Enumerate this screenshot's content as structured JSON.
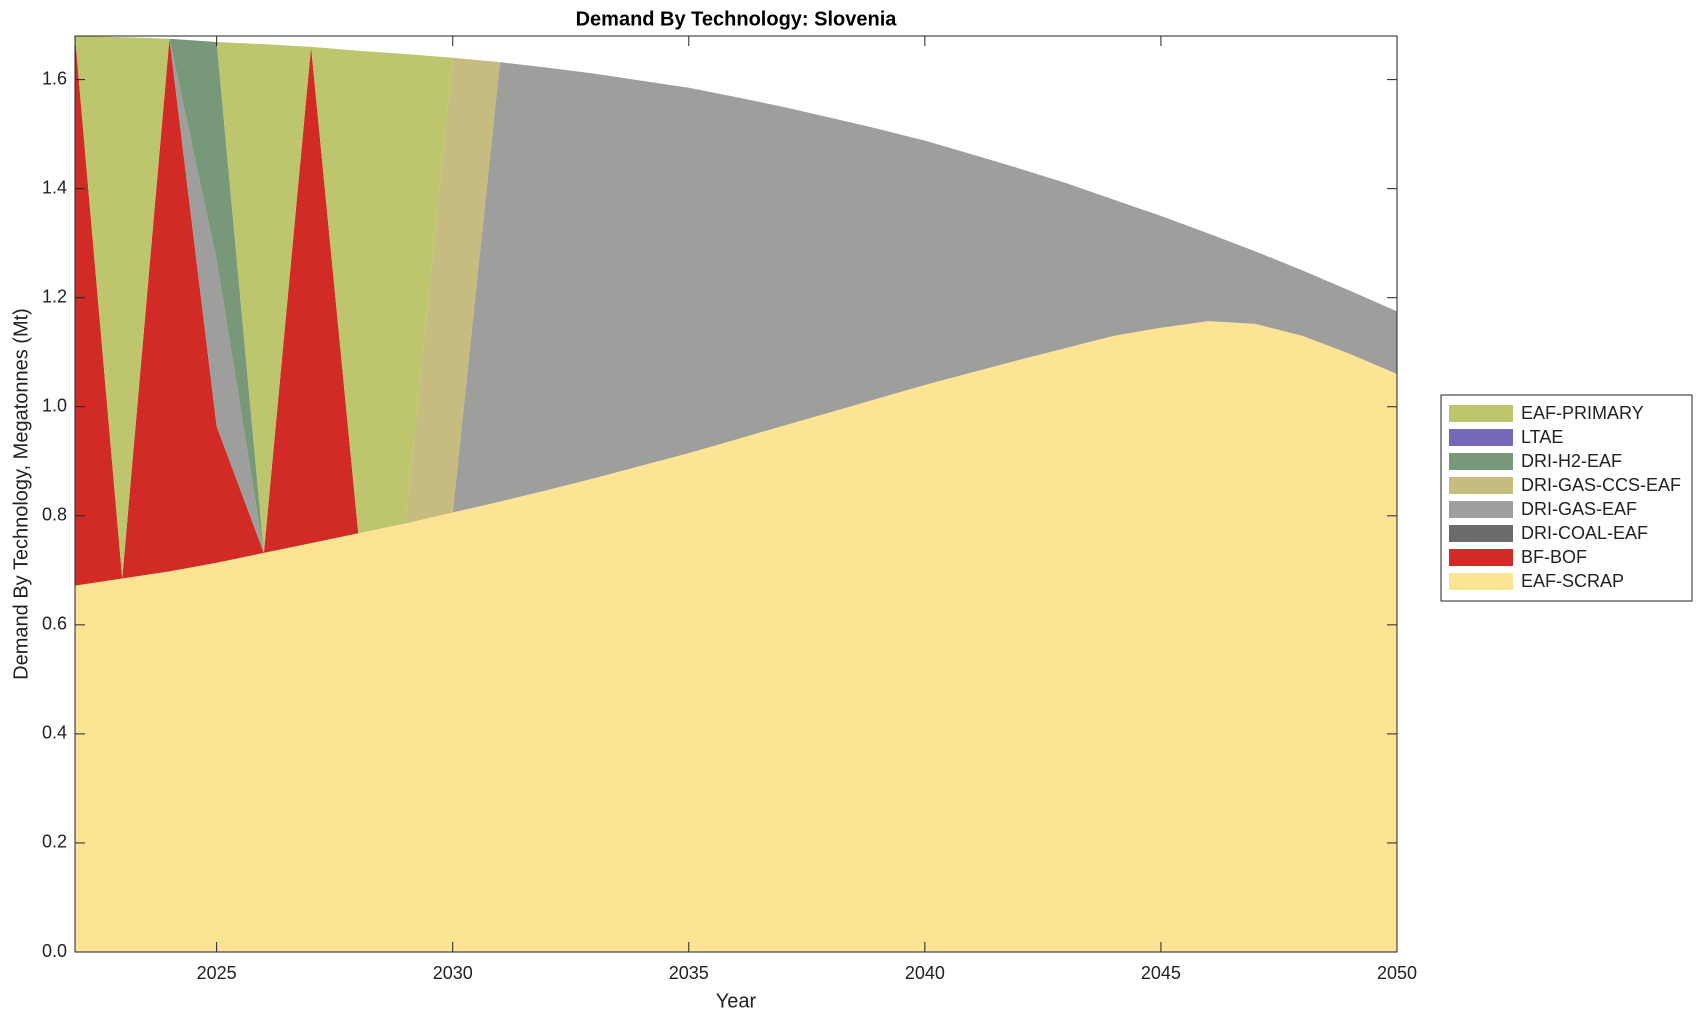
{
  "chart_data": {
    "type": "stacked_area",
    "title": "Demand By Technology: Slovenia",
    "xlabel": "Year",
    "ylabel": "Demand By Technology, Megatonnes (Mt)",
    "x": [
      2022,
      2023,
      2024,
      2025,
      2026,
      2027,
      2028,
      2029,
      2030,
      2031,
      2032,
      2033,
      2034,
      2035,
      2036,
      2037,
      2038,
      2039,
      2040,
      2041,
      2042,
      2043,
      2044,
      2045,
      2046,
      2047,
      2048,
      2049,
      2050
    ],
    "xlim": [
      2022,
      2050
    ],
    "xticks": [
      2025,
      2030,
      2035,
      2040,
      2045,
      2050
    ],
    "ylim": [
      0,
      1.68
    ],
    "yticks": [
      {
        "value": 0,
        "label": "0.0"
      },
      0.2,
      0.4,
      0.6,
      0.8,
      {
        "value": 1,
        "label": "1.0"
      },
      1.2,
      1.4,
      1.6
    ],
    "legend": "right",
    "series": [
      {
        "name": "EAF-SCRAP",
        "color": "#fde495",
        "values": [
          0.672,
          0.685,
          0.698,
          0.714,
          0.732,
          0.75,
          0.768,
          0.786,
          0.806,
          0.826,
          0.847,
          0.869,
          0.892,
          0.915,
          0.94,
          0.965,
          0.99,
          1.015,
          1.04,
          1.063,
          1.086,
          1.108,
          1.13,
          1.145,
          1.157,
          1.152,
          1.13,
          1.097,
          1.06
        ]
      },
      {
        "name": "BF-BOF",
        "color": "#d22b26",
        "values": [
          1.008,
          0,
          0.977,
          0.25,
          0,
          0.91,
          0,
          0,
          0,
          0,
          0,
          0,
          0,
          0,
          0,
          0,
          0,
          0,
          0,
          0,
          0,
          0,
          0,
          0,
          0,
          0,
          0,
          0,
          0
        ]
      },
      {
        "name": "DRI-COAL-EAF",
        "color": "#6b6b6b",
        "values": [
          0,
          0,
          0,
          0,
          0,
          0,
          0,
          0,
          0,
          0,
          0,
          0,
          0,
          0,
          0,
          0,
          0,
          0,
          0,
          0,
          0,
          0,
          0,
          0,
          0,
          0,
          0,
          0,
          0
        ]
      },
      {
        "name": "DRI-GAS-EAF",
        "color": "#9e9e9c",
        "values": [
          0,
          0,
          0,
          0.305,
          0,
          0,
          0,
          0,
          0,
          0.806,
          0.775,
          0.742,
          0.706,
          0.67,
          0.628,
          0.585,
          0.54,
          0.495,
          0.448,
          0.4,
          0.351,
          0.302,
          0.25,
          0.205,
          0.161,
          0.133,
          0.12,
          0.116,
          0.115
        ]
      },
      {
        "name": "DRI-GAS-CCS-EAF",
        "color": "#c6bc7f",
        "values": [
          0,
          0,
          0,
          0,
          0,
          0,
          0,
          0,
          0.834,
          0,
          0,
          0,
          0,
          0,
          0,
          0,
          0,
          0,
          0,
          0,
          0,
          0,
          0,
          0,
          0,
          0,
          0,
          0,
          0
        ]
      },
      {
        "name": "DRI-H2-EAF",
        "color": "#77997a",
        "values": [
          0,
          0,
          0,
          0.4,
          0,
          0,
          0,
          0,
          0,
          0,
          0,
          0,
          0,
          0,
          0,
          0,
          0,
          0,
          0,
          0,
          0,
          0,
          0,
          0,
          0,
          0,
          0,
          0,
          0
        ]
      },
      {
        "name": "LTAE",
        "color": "#7569b9",
        "values": [
          0,
          0,
          0,
          0,
          0,
          0,
          0,
          0,
          0,
          0,
          0,
          0,
          0,
          0,
          0,
          0,
          0,
          0,
          0,
          0,
          0,
          0,
          0,
          0,
          0,
          0,
          0,
          0,
          0
        ]
      },
      {
        "name": "EAF-PRIMARY",
        "color": "#bdc66c",
        "values": [
          0,
          0.993,
          0,
          0,
          0.933,
          0,
          0.885,
          0.861,
          0,
          0,
          0,
          0,
          0,
          0,
          0,
          0,
          0,
          0,
          0,
          0,
          0,
          0,
          0,
          0,
          0,
          0,
          0,
          0,
          0
        ]
      }
    ]
  }
}
